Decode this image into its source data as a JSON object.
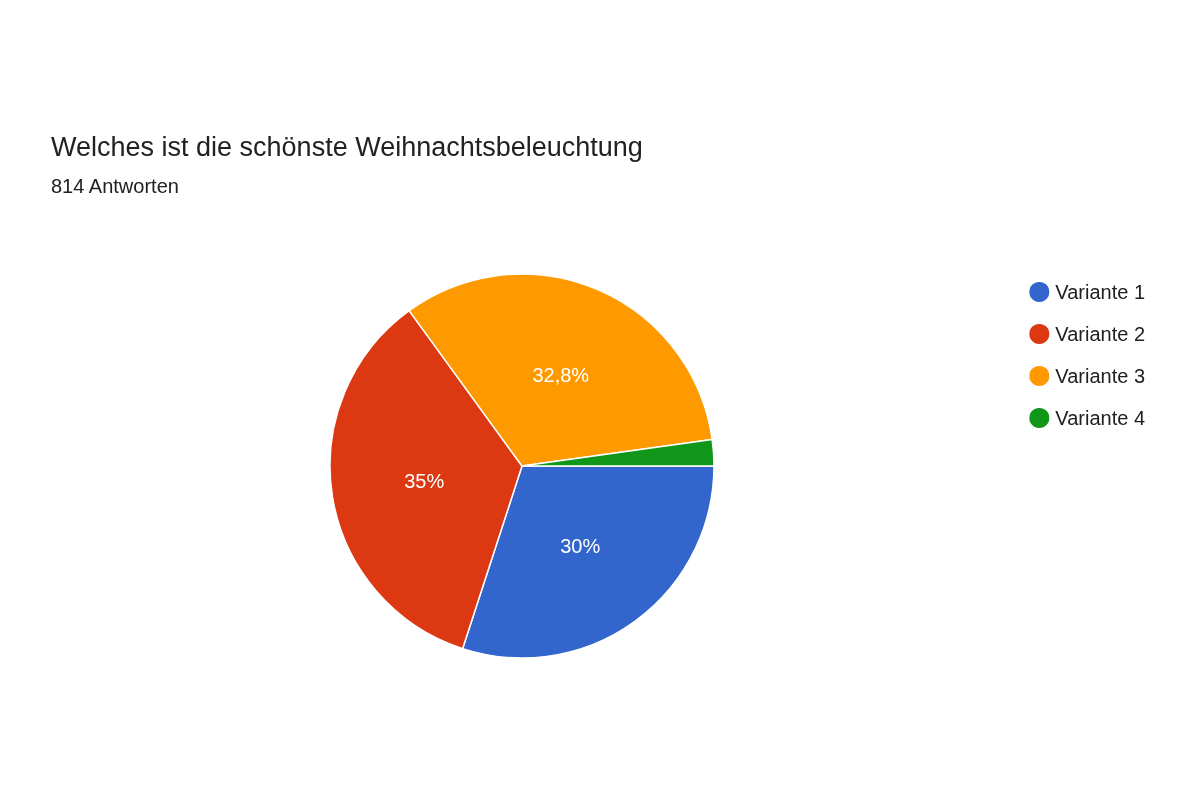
{
  "chart_data": {
    "type": "pie",
    "title": "Welches ist die schönste Weihnachtsbeleuchtung",
    "subtitle": "814 Antworten",
    "categories": [
      "Variante 1",
      "Variante 2",
      "Variante 3",
      "Variante 4"
    ],
    "values": [
      30,
      35,
      32.8,
      2.2
    ],
    "colors": [
      "#3366cc",
      "#dc3912",
      "#ff9900",
      "#109618"
    ],
    "value_labels": [
      "30%",
      "35%",
      "32,8%",
      null
    ],
    "legend": "top right"
  }
}
